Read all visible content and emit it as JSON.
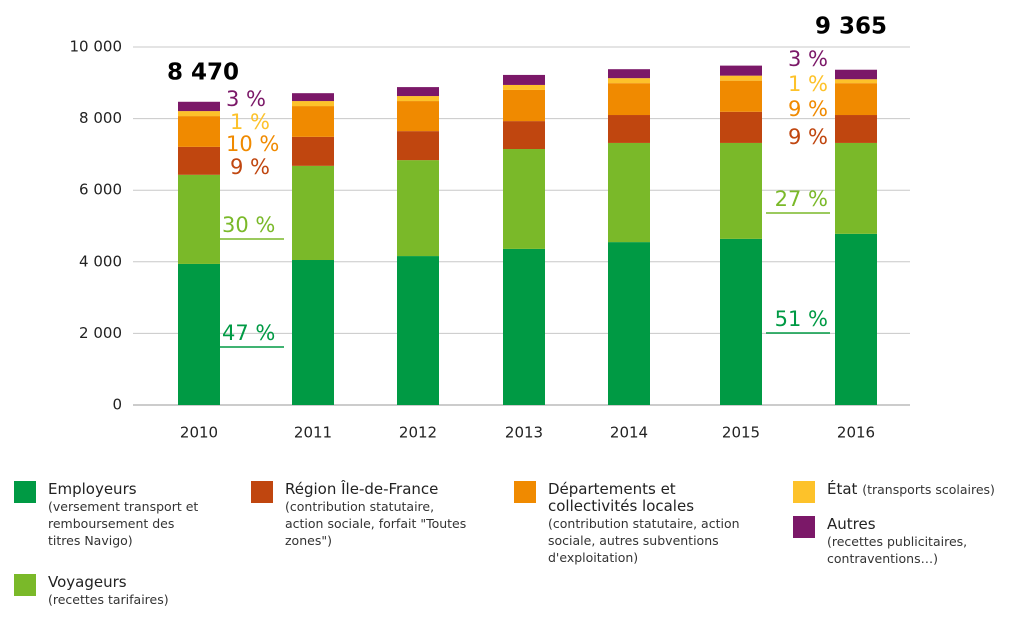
{
  "chart_data": {
    "type": "bar",
    "stacked": true,
    "categories": [
      "2010",
      "2011",
      "2012",
      "2013",
      "2014",
      "2015",
      "2016"
    ],
    "series": [
      {
        "name": "Employeurs",
        "note": "(versement transport et remboursement des titres Navigo)",
        "color": "#009a44",
        "values": [
          3940,
          4050,
          4160,
          4360,
          4550,
          4640,
          4780
        ],
        "share_labels": [
          {
            "category": "2010",
            "text": "47 %"
          },
          {
            "category": "2016",
            "text": "51 %"
          }
        ]
      },
      {
        "name": "Voyageurs",
        "note": "(recettes tarifaires)",
        "color": "#7ab929",
        "values": [
          2490,
          2630,
          2680,
          2790,
          2770,
          2680,
          2540
        ],
        "share_labels": [
          {
            "category": "2010",
            "text": "30 %"
          },
          {
            "category": "2016",
            "text": "27 %"
          }
        ]
      },
      {
        "name": "Région Île-de-France",
        "note": "(contribution statutaire, action sociale, forfait \"Toutes zones\")",
        "color": "#c0460f",
        "values": [
          780,
          810,
          810,
          780,
          780,
          870,
          780
        ],
        "share_labels": [
          {
            "category": "2010",
            "text": "9 %"
          },
          {
            "category": "2016",
            "text": "9 %"
          }
        ]
      },
      {
        "name": "Départements et collectivités locales",
        "note": "(contribution statutaire, action sociale, autres subventions d'exploitation)",
        "color": "#f08a00",
        "values": [
          860,
          860,
          840,
          870,
          890,
          870,
          890
        ],
        "share_labels": [
          {
            "category": "2010",
            "text": "10 %"
          },
          {
            "category": "2016",
            "text": "9 %"
          }
        ]
      },
      {
        "name": "État",
        "note": "(transports scolaires)",
        "color": "#fdc22a",
        "values": [
          140,
          140,
          140,
          140,
          140,
          140,
          110
        ],
        "share_labels": [
          {
            "category": "2010",
            "text": "1 %"
          },
          {
            "category": "2016",
            "text": "1 %"
          }
        ]
      },
      {
        "name": "Autres",
        "note": "(recettes publicitaires, contraventions…)",
        "color": "#7b1868",
        "values": [
          260,
          220,
          250,
          280,
          250,
          280,
          265
        ],
        "share_labels": [
          {
            "category": "2010",
            "text": "3 %"
          },
          {
            "category": "2016",
            "text": "3 %"
          }
        ]
      }
    ],
    "annotations": [
      {
        "category": "2010",
        "text": "8 470"
      },
      {
        "category": "2016",
        "text": "9 365"
      }
    ],
    "ylim": [
      0,
      10000
    ],
    "yticks": [
      0,
      {
        "value": 2000,
        "label": "2 000"
      },
      {
        "value": 4000,
        "label": "4 000"
      },
      {
        "value": 6000,
        "label": "6 000"
      },
      {
        "value": 8000,
        "label": "8 000"
      },
      {
        "value": 10000,
        "label": "10 000"
      }
    ],
    "grid": true
  }
}
